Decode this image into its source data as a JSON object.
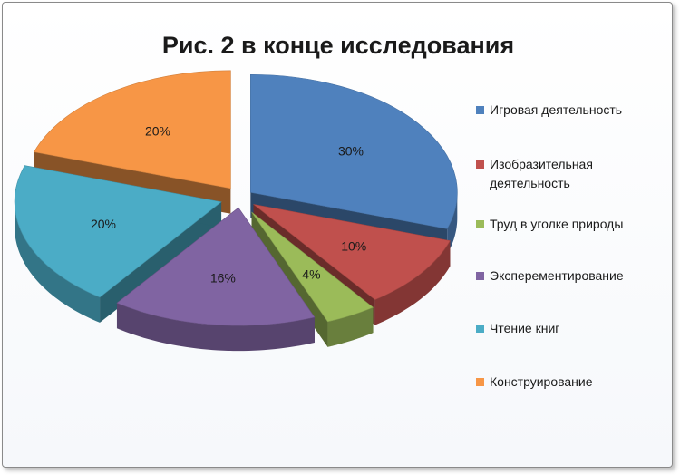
{
  "chart_data": {
    "type": "pie",
    "title": "Рис. 2 в конце исследования",
    "categories": [
      "Игровая деятельность",
      "Изобразительная деятельность",
      "Труд в уголке природы",
      "Эксперементирование",
      "Чтение книг",
      "Конструирование"
    ],
    "values": [
      30,
      10,
      4,
      16,
      20,
      20
    ],
    "labels": [
      "30%",
      "10%",
      "4%",
      "16%",
      "20%",
      "20%"
    ],
    "colors": [
      "#4f81bd",
      "#c0504d",
      "#9bbb59",
      "#8064a2",
      "#4bacc6",
      "#f79646"
    ],
    "legend_position": "right"
  }
}
